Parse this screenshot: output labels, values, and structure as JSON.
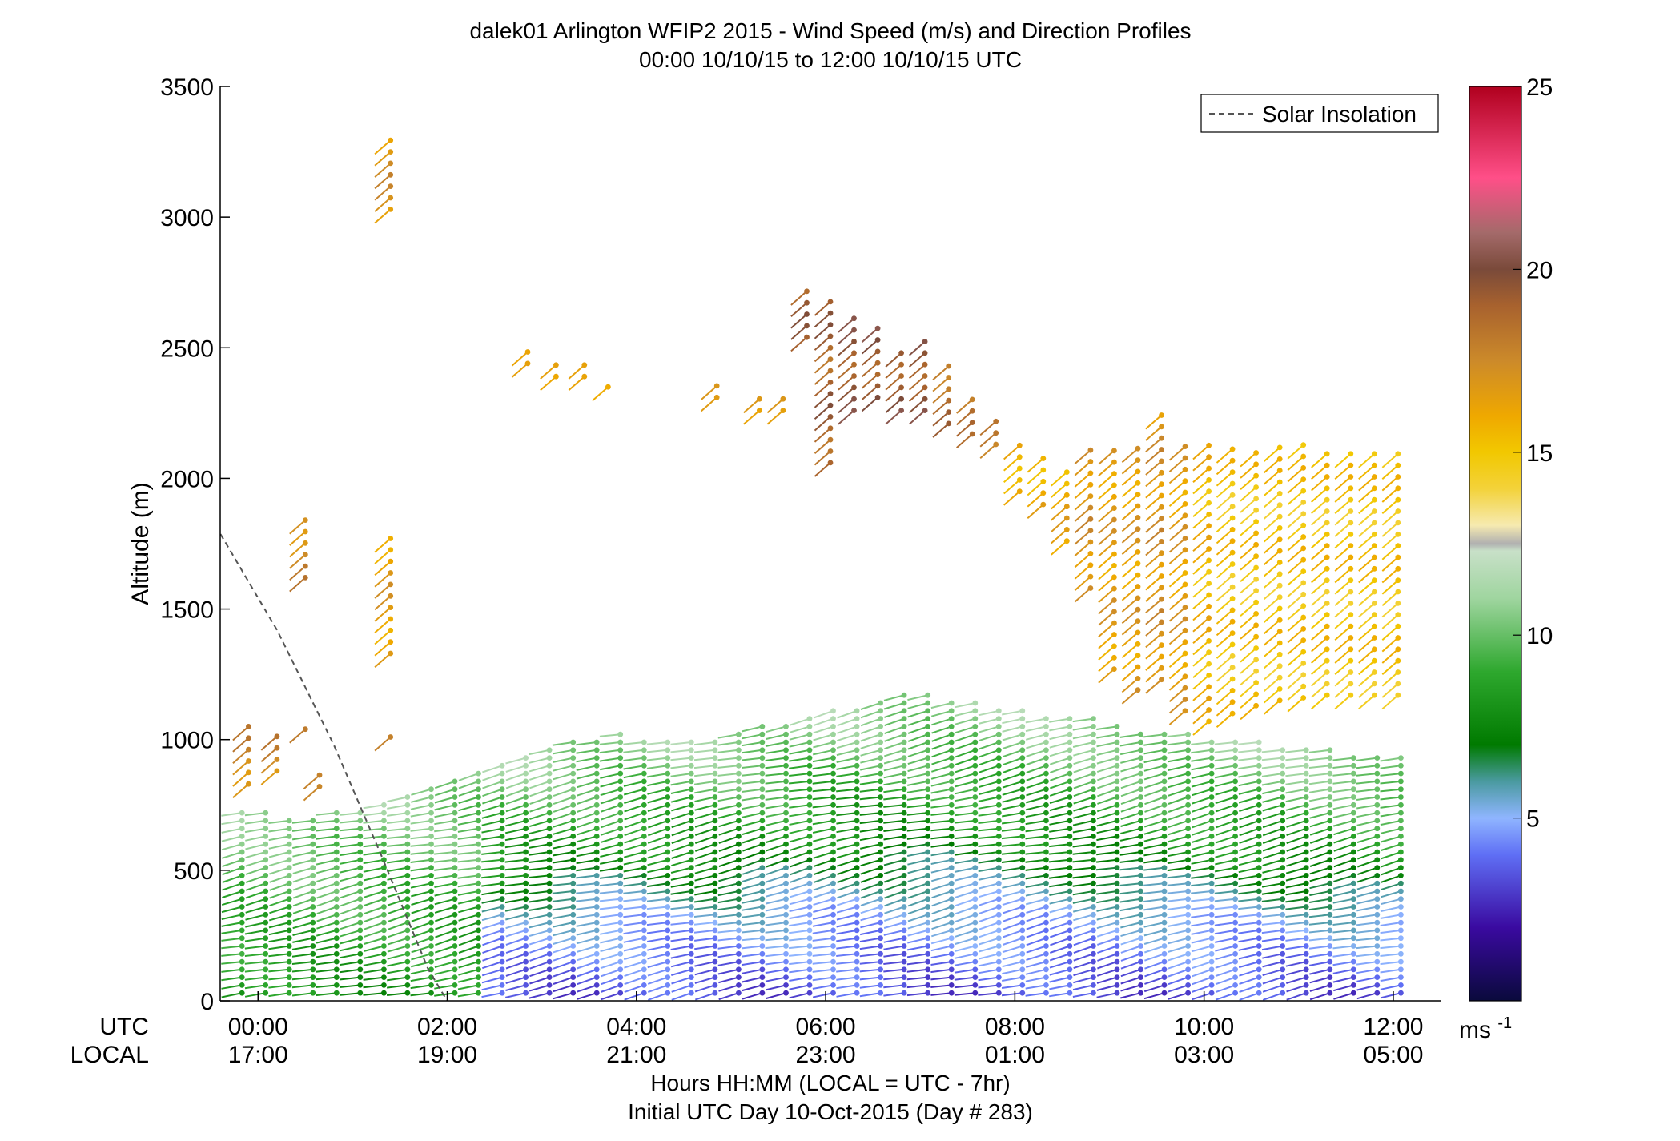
{
  "chart_data": {
    "type": "wind-barb-profile",
    "title": "dalek01 Arlington WFIP2 2015 - Wind Speed (m/s) and Direction Profiles",
    "subtitle": "00:00 10/10/15 to 12:00 10/10/15  UTC",
    "ylabel": "Altitude (m)",
    "xlabel": "Hours HH:MM  (LOCAL = UTC - 7hr)",
    "footer": "Initial UTC Day 10-Oct-2015 (Day # 283)",
    "ylim": [
      0,
      3500
    ],
    "xlim_hours": [
      -0.4,
      12.5
    ],
    "y_ticks": [
      0,
      500,
      1000,
      1500,
      2000,
      2500,
      3000,
      3500
    ],
    "x_tick_hours": [
      0,
      2,
      4,
      6,
      8,
      10,
      12
    ],
    "utc_row_label": "UTC",
    "local_row_label": "LOCAL",
    "x_tick_utc": [
      "00:00",
      "02:00",
      "04:00",
      "06:00",
      "08:00",
      "10:00",
      "12:00"
    ],
    "x_tick_local": [
      "17:00",
      "19:00",
      "21:00",
      "23:00",
      "01:00",
      "03:00",
      "05:00"
    ],
    "legend": {
      "label": "Solar Insolation",
      "position": "top-right",
      "line_color": "#666666"
    },
    "solar_insolation": {
      "x_hours": [
        -0.5,
        0.2,
        0.8,
        1.3,
        1.8,
        2.0
      ],
      "y": [
        1850,
        1420,
        980,
        560,
        120,
        0
      ]
    },
    "colorbar": {
      "min": 0,
      "max": 25,
      "ticks": [
        5,
        10,
        15,
        20,
        25
      ],
      "unit": "ms",
      "unit_superscript": "-1",
      "stops": [
        {
          "v": 0,
          "c": "#0a0a3c"
        },
        {
          "v": 2,
          "c": "#3a0aa0"
        },
        {
          "v": 4,
          "c": "#5f6ff5"
        },
        {
          "v": 5,
          "c": "#8fb5ff"
        },
        {
          "v": 6,
          "c": "#4a9aa0"
        },
        {
          "v": 7,
          "c": "#007a00"
        },
        {
          "v": 9,
          "c": "#2ea82e"
        },
        {
          "v": 11,
          "c": "#9fd59f"
        },
        {
          "v": 12.3,
          "c": "#c8e0c8"
        },
        {
          "v": 12.5,
          "c": "#b0b0b0"
        },
        {
          "v": 13,
          "c": "#f6eab0"
        },
        {
          "v": 14,
          "c": "#f3d23a"
        },
        {
          "v": 15,
          "c": "#f2c800"
        },
        {
          "v": 16,
          "c": "#efa800"
        },
        {
          "v": 17.5,
          "c": "#cc8a2a"
        },
        {
          "v": 19,
          "c": "#a8622e"
        },
        {
          "v": 20,
          "c": "#7a4a3a"
        },
        {
          "v": 21,
          "c": "#a46a6a"
        },
        {
          "v": 22.5,
          "c": "#ff4f88"
        },
        {
          "v": 25,
          "c": "#b0001e"
        }
      ]
    },
    "profile_times_hours": [
      -0.17,
      0.08,
      0.33,
      0.58,
      0.83,
      1.08,
      1.33,
      1.58,
      1.83,
      2.08,
      2.33,
      2.58,
      2.83,
      3.08,
      3.33,
      3.58,
      3.83,
      4.08,
      4.33,
      4.58,
      4.83,
      5.08,
      5.33,
      5.58,
      5.83,
      6.08,
      6.33,
      6.58,
      6.83,
      7.08,
      7.33,
      7.58,
      7.83,
      8.08,
      8.33,
      8.58,
      8.83,
      9.08,
      9.33,
      9.58,
      9.83,
      10.08,
      10.33,
      10.58,
      10.83,
      11.08,
      11.33,
      11.58,
      11.83,
      12.08
    ],
    "lowlevel_top_m": [
      730,
      740,
      700,
      700,
      720,
      730,
      760,
      790,
      820,
      850,
      870,
      900,
      930,
      960,
      990,
      1010,
      1020,
      1010,
      1000,
      990,
      1000,
      1020,
      1050,
      1070,
      1090,
      1110,
      1130,
      1150,
      1170,
      1180,
      1160,
      1140,
      1120,
      1110,
      1100,
      1090,
      1080,
      1060,
      1040,
      1030,
      1020,
      1010,
      1000,
      990,
      980,
      970,
      960,
      950,
      940,
      930
    ],
    "gate_step_m": 30,
    "upper_segments": [
      {
        "t": -0.1,
        "y0": 830,
        "y1": 1090,
        "spd": 17.5
      },
      {
        "t": 0.2,
        "y0": 880,
        "y1": 1050,
        "spd": 17.5
      },
      {
        "t": 0.5,
        "y0": 1620,
        "y1": 1870,
        "spd": 17.5
      },
      {
        "t": 0.5,
        "y0": 1040,
        "y1": 1040,
        "spd": 17.5
      },
      {
        "t": 0.65,
        "y0": 820,
        "y1": 870,
        "spd": 18.5
      },
      {
        "t": 1.4,
        "y0": 1330,
        "y1": 1780,
        "spd": 16.5
      },
      {
        "t": 1.4,
        "y0": 3030,
        "y1": 3310,
        "spd": 17
      },
      {
        "t": 1.4,
        "y0": 1010,
        "y1": 1010,
        "spd": 17.5
      },
      {
        "t": 2.85,
        "y0": 2440,
        "y1": 2490,
        "spd": 15.5
      },
      {
        "t": 3.15,
        "y0": 2390,
        "y1": 2440,
        "spd": 15.5
      },
      {
        "t": 3.45,
        "y0": 2390,
        "y1": 2440,
        "spd": 15.5
      },
      {
        "t": 3.7,
        "y0": 2350,
        "y1": 2350,
        "spd": 15.5
      },
      {
        "t": 4.85,
        "y0": 2310,
        "y1": 2360,
        "spd": 16
      },
      {
        "t": 5.3,
        "y0": 2260,
        "y1": 2310,
        "spd": 16
      },
      {
        "t": 5.55,
        "y0": 2260,
        "y1": 2310,
        "spd": 16
      },
      {
        "t": 5.8,
        "y0": 2540,
        "y1": 2720,
        "spd": 19
      },
      {
        "t": 6.05,
        "y0": 2060,
        "y1": 2680,
        "spd": 19
      },
      {
        "t": 6.3,
        "y0": 2260,
        "y1": 2630,
        "spd": 19.5
      },
      {
        "t": 6.55,
        "y0": 2310,
        "y1": 2580,
        "spd": 19.5
      },
      {
        "t": 6.8,
        "y0": 2260,
        "y1": 2490,
        "spd": 19.5
      },
      {
        "t": 7.05,
        "y0": 2260,
        "y1": 2540,
        "spd": 19.5
      },
      {
        "t": 7.3,
        "y0": 2210,
        "y1": 2440,
        "spd": 18.5
      },
      {
        "t": 7.55,
        "y0": 2170,
        "y1": 2310,
        "spd": 18
      },
      {
        "t": 7.8,
        "y0": 2130,
        "y1": 2220,
        "spd": 17.5
      },
      {
        "t": 8.05,
        "y0": 1950,
        "y1": 2130,
        "spd": 16
      },
      {
        "t": 8.3,
        "y0": 1900,
        "y1": 2090,
        "spd": 16
      },
      {
        "t": 8.55,
        "y0": 1760,
        "y1": 2040,
        "spd": 16
      },
      {
        "t": 8.8,
        "y0": 1580,
        "y1": 2130,
        "spd": 17
      },
      {
        "t": 9.05,
        "y0": 1270,
        "y1": 2130,
        "spd": 16.5
      },
      {
        "t": 9.3,
        "y0": 1190,
        "y1": 2130,
        "spd": 16.5
      },
      {
        "t": 9.55,
        "y0": 1230,
        "y1": 2260,
        "spd": 17
      },
      {
        "t": 9.8,
        "y0": 1110,
        "y1": 2130,
        "spd": 16.5
      },
      {
        "t": 10.05,
        "y0": 1070,
        "y1": 2130,
        "spd": 15.5
      },
      {
        "t": 10.3,
        "y0": 1100,
        "y1": 2130,
        "spd": 15
      },
      {
        "t": 10.55,
        "y0": 1130,
        "y1": 2130,
        "spd": 15
      },
      {
        "t": 10.8,
        "y0": 1150,
        "y1": 2130,
        "spd": 15
      },
      {
        "t": 11.05,
        "y0": 1160,
        "y1": 2130,
        "spd": 15
      },
      {
        "t": 11.3,
        "y0": 1170,
        "y1": 2130,
        "spd": 15
      },
      {
        "t": 11.55,
        "y0": 1170,
        "y1": 2130,
        "spd": 15
      },
      {
        "t": 11.8,
        "y0": 1170,
        "y1": 2130,
        "spd": 15
      },
      {
        "t": 12.05,
        "y0": 1170,
        "y1": 2130,
        "spd": 15
      }
    ]
  }
}
